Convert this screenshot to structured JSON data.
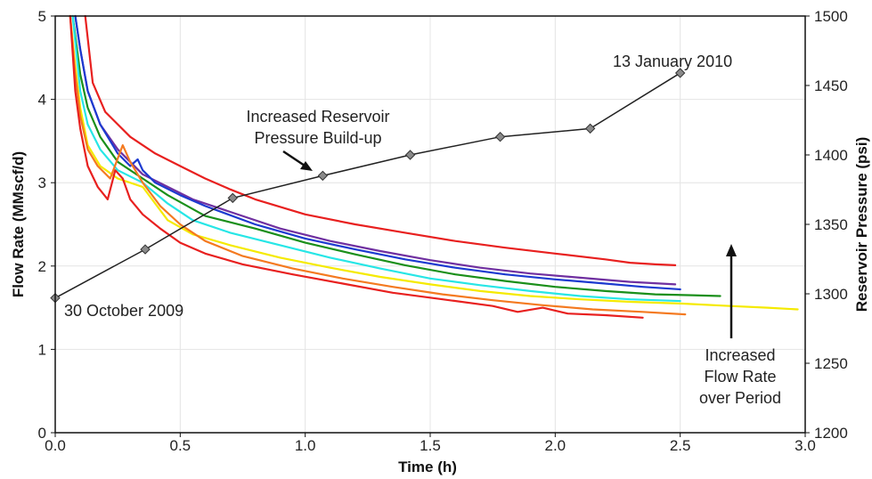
{
  "chart_data": {
    "type": "line",
    "title": "",
    "xlabel": "Time (h)",
    "ylabel": "Flow Rate (MMscf/d)",
    "y2label": "Reservoir Pressure (psi)",
    "xlim": [
      0,
      3.0
    ],
    "ylim": [
      0,
      5
    ],
    "y2lim": [
      1200,
      1500
    ],
    "xticks": [
      "0.0",
      "0.5",
      "1.0",
      "1.5",
      "2.0",
      "2.5",
      "3.0"
    ],
    "yticks": [
      "0",
      "1",
      "2",
      "3",
      "4",
      "5"
    ],
    "y2ticks": [
      "1200",
      "1250",
      "1300",
      "1350",
      "1400",
      "1450",
      "1500"
    ],
    "grid": true,
    "series": [
      {
        "color": "#e8201f",
        "axis": "left",
        "points": [
          [
            0.12,
            5.0
          ],
          [
            0.15,
            4.2
          ],
          [
            0.2,
            3.85
          ],
          [
            0.3,
            3.55
          ],
          [
            0.4,
            3.35
          ],
          [
            0.5,
            3.2
          ],
          [
            0.6,
            3.05
          ],
          [
            0.7,
            2.92
          ],
          [
            0.8,
            2.8
          ],
          [
            1.0,
            2.62
          ],
          [
            1.2,
            2.5
          ],
          [
            1.4,
            2.4
          ],
          [
            1.6,
            2.3
          ],
          [
            1.8,
            2.22
          ],
          [
            2.0,
            2.15
          ],
          [
            2.2,
            2.08
          ],
          [
            2.3,
            2.04
          ],
          [
            2.4,
            2.02
          ],
          [
            2.48,
            2.01
          ]
        ]
      },
      {
        "color": "#7030a0",
        "axis": "left",
        "points": [
          [
            0.08,
            5.0
          ],
          [
            0.1,
            4.6
          ],
          [
            0.13,
            4.1
          ],
          [
            0.18,
            3.7
          ],
          [
            0.25,
            3.4
          ],
          [
            0.35,
            3.1
          ],
          [
            0.45,
            2.95
          ],
          [
            0.55,
            2.8
          ],
          [
            0.7,
            2.65
          ],
          [
            0.9,
            2.45
          ],
          [
            1.1,
            2.3
          ],
          [
            1.3,
            2.18
          ],
          [
            1.5,
            2.07
          ],
          [
            1.7,
            1.98
          ],
          [
            1.9,
            1.91
          ],
          [
            2.1,
            1.86
          ],
          [
            2.3,
            1.81
          ],
          [
            2.48,
            1.78
          ]
        ]
      },
      {
        "color": "#1c3ad0",
        "axis": "left",
        "points": [
          [
            0.08,
            5.0
          ],
          [
            0.1,
            4.6
          ],
          [
            0.13,
            4.1
          ],
          [
            0.18,
            3.7
          ],
          [
            0.25,
            3.35
          ],
          [
            0.3,
            3.2
          ],
          [
            0.33,
            3.28
          ],
          [
            0.35,
            3.15
          ],
          [
            0.4,
            3.0
          ],
          [
            0.5,
            2.85
          ],
          [
            0.6,
            2.72
          ],
          [
            0.8,
            2.5
          ],
          [
            1.0,
            2.33
          ],
          [
            1.2,
            2.2
          ],
          [
            1.4,
            2.08
          ],
          [
            1.6,
            1.98
          ],
          [
            1.8,
            1.9
          ],
          [
            2.0,
            1.84
          ],
          [
            2.2,
            1.79
          ],
          [
            2.35,
            1.75
          ],
          [
            2.5,
            1.72
          ]
        ]
      },
      {
        "color": "#1a8f1a",
        "axis": "left",
        "points": [
          [
            0.07,
            5.0
          ],
          [
            0.1,
            4.3
          ],
          [
            0.13,
            3.9
          ],
          [
            0.18,
            3.55
          ],
          [
            0.25,
            3.25
          ],
          [
            0.35,
            3.05
          ],
          [
            0.45,
            2.85
          ],
          [
            0.6,
            2.6
          ],
          [
            0.8,
            2.45
          ],
          [
            1.0,
            2.28
          ],
          [
            1.2,
            2.14
          ],
          [
            1.4,
            2.01
          ],
          [
            1.6,
            1.9
          ],
          [
            1.8,
            1.82
          ],
          [
            2.0,
            1.75
          ],
          [
            2.2,
            1.7
          ],
          [
            2.4,
            1.66
          ],
          [
            2.55,
            1.65
          ],
          [
            2.66,
            1.64
          ]
        ]
      },
      {
        "color": "#27e6e6",
        "axis": "left",
        "points": [
          [
            0.07,
            5.0
          ],
          [
            0.1,
            4.1
          ],
          [
            0.13,
            3.7
          ],
          [
            0.18,
            3.4
          ],
          [
            0.25,
            3.15
          ],
          [
            0.35,
            3.0
          ],
          [
            0.45,
            2.75
          ],
          [
            0.55,
            2.55
          ],
          [
            0.7,
            2.4
          ],
          [
            0.9,
            2.25
          ],
          [
            1.1,
            2.1
          ],
          [
            1.3,
            1.97
          ],
          [
            1.5,
            1.85
          ],
          [
            1.7,
            1.77
          ],
          [
            1.9,
            1.7
          ],
          [
            2.1,
            1.64
          ],
          [
            2.3,
            1.6
          ],
          [
            2.5,
            1.58
          ]
        ]
      },
      {
        "color": "#f5ea00",
        "axis": "left",
        "points": [
          [
            0.06,
            5.0
          ],
          [
            0.08,
            4.4
          ],
          [
            0.1,
            3.9
          ],
          [
            0.13,
            3.45
          ],
          [
            0.18,
            3.2
          ],
          [
            0.25,
            3.05
          ],
          [
            0.35,
            2.95
          ],
          [
            0.45,
            2.55
          ],
          [
            0.55,
            2.38
          ],
          [
            0.7,
            2.25
          ],
          [
            0.9,
            2.1
          ],
          [
            1.1,
            1.98
          ],
          [
            1.3,
            1.87
          ],
          [
            1.5,
            1.78
          ],
          [
            1.7,
            1.7
          ],
          [
            1.9,
            1.64
          ],
          [
            2.1,
            1.6
          ],
          [
            2.3,
            1.57
          ],
          [
            2.5,
            1.55
          ],
          [
            2.7,
            1.52
          ],
          [
            2.85,
            1.5
          ],
          [
            2.97,
            1.48
          ]
        ]
      },
      {
        "color": "#f47a20",
        "axis": "left",
        "points": [
          [
            0.06,
            5.0
          ],
          [
            0.08,
            4.3
          ],
          [
            0.1,
            3.8
          ],
          [
            0.13,
            3.4
          ],
          [
            0.17,
            3.2
          ],
          [
            0.22,
            3.05
          ],
          [
            0.27,
            3.45
          ],
          [
            0.3,
            3.25
          ],
          [
            0.35,
            3.0
          ],
          [
            0.42,
            2.72
          ],
          [
            0.5,
            2.5
          ],
          [
            0.6,
            2.3
          ],
          [
            0.75,
            2.12
          ],
          [
            0.95,
            1.97
          ],
          [
            1.15,
            1.85
          ],
          [
            1.35,
            1.75
          ],
          [
            1.55,
            1.66
          ],
          [
            1.75,
            1.59
          ],
          [
            1.95,
            1.53
          ],
          [
            2.15,
            1.48
          ],
          [
            2.35,
            1.45
          ],
          [
            2.52,
            1.42
          ]
        ]
      },
      {
        "color": "#e8201f",
        "axis": "left",
        "points": [
          [
            0.06,
            5.0
          ],
          [
            0.08,
            4.1
          ],
          [
            0.1,
            3.65
          ],
          [
            0.13,
            3.2
          ],
          [
            0.17,
            2.95
          ],
          [
            0.21,
            2.8
          ],
          [
            0.24,
            3.15
          ],
          [
            0.27,
            3.05
          ],
          [
            0.3,
            2.8
          ],
          [
            0.35,
            2.62
          ],
          [
            0.42,
            2.45
          ],
          [
            0.5,
            2.28
          ],
          [
            0.6,
            2.15
          ],
          [
            0.75,
            2.02
          ],
          [
            0.95,
            1.9
          ],
          [
            1.15,
            1.79
          ],
          [
            1.35,
            1.68
          ],
          [
            1.55,
            1.6
          ],
          [
            1.75,
            1.52
          ],
          [
            1.85,
            1.45
          ],
          [
            1.95,
            1.5
          ],
          [
            2.05,
            1.43
          ],
          [
            2.2,
            1.41
          ],
          [
            2.35,
            1.38
          ]
        ]
      }
    ],
    "pressure_series": {
      "color": "#222222",
      "axis": "right",
      "points": [
        [
          0.0,
          1297
        ],
        [
          0.36,
          1332
        ],
        [
          0.71,
          1369
        ],
        [
          1.07,
          1385
        ],
        [
          1.42,
          1400
        ],
        [
          1.78,
          1413
        ],
        [
          2.14,
          1419
        ],
        [
          2.5,
          1459
        ]
      ]
    },
    "annotations": {
      "start": "30 October 2009",
      "end": "13 January 2010",
      "pressure_line1": "Increased Reservoir",
      "pressure_line2": "Pressure Build-up",
      "flow_line1": "Increased",
      "flow_line2": "Flow Rate",
      "flow_line3": "over Period"
    }
  }
}
